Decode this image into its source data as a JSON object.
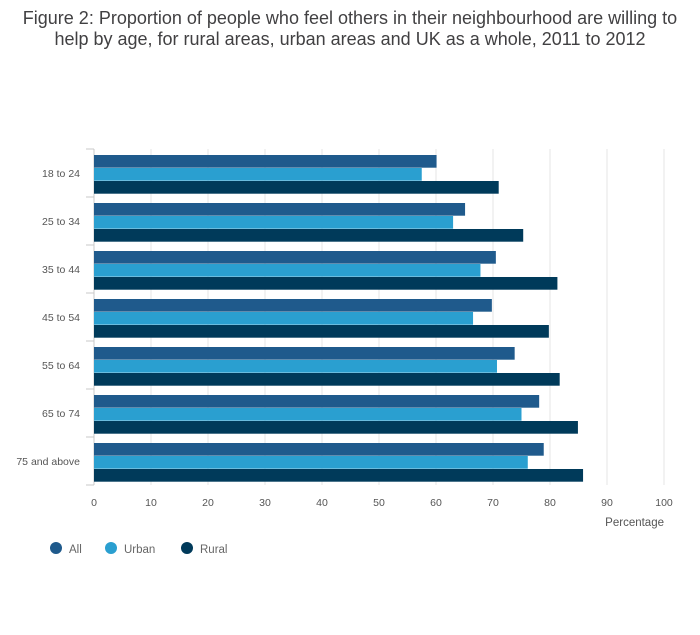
{
  "chart_data": {
    "type": "bar",
    "orientation": "horizontal",
    "title": "Figure 2: Proportion of people who feel others in their neighbourhood are willing to help by age, for rural areas, urban areas and UK as a whole, 2011 to 2012",
    "categories": [
      "18 to 24",
      "25 to 34",
      "35 to 44",
      "45 to 54",
      "55 to 64",
      "65 to 74",
      "75 and above"
    ],
    "series": [
      {
        "name": "All",
        "color": "#1f5a8c",
        "values": [
          60.1,
          65.1,
          70.5,
          69.8,
          73.8,
          78.1,
          78.9
        ]
      },
      {
        "name": "Urban",
        "color": "#2a9fd0",
        "values": [
          57.5,
          63.0,
          67.8,
          66.5,
          70.7,
          75.0,
          76.1
        ]
      },
      {
        "name": "Rural",
        "color": "#003a5a",
        "values": [
          71.0,
          75.3,
          81.3,
          79.8,
          81.7,
          84.9,
          85.8
        ]
      }
    ],
    "xlabel": "Percentage",
    "ylabel": "",
    "xlim": [
      0,
      100
    ],
    "xticks": [
      0,
      10,
      20,
      30,
      40,
      50,
      60,
      70,
      80,
      90,
      100
    ],
    "grid": true,
    "legend_position": "bottom-left"
  }
}
